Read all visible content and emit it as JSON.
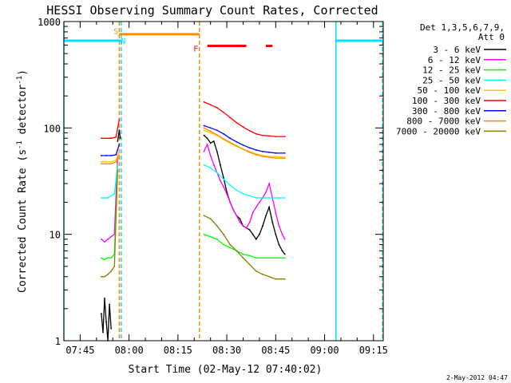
{
  "chart_data": {
    "type": "line",
    "title": "HESSI Observing Summary Count Rates, Corrected",
    "xlabel": "Start Time (02-May-12 07:40:02)",
    "ylabel_main": "Corrected Count Rate (s",
    "ylabel_sup1": "-1",
    "ylabel_mid": " detector",
    "ylabel_sup2": "-1",
    "ylabel_end": ")",
    "yscale": "log",
    "xlim_min": [
      40.0,
      138.0
    ],
    "ylim": [
      1,
      1000
    ],
    "x_ticks": [
      {
        "v": 45,
        "label": "07:45"
      },
      {
        "v": 60,
        "label": "08:00"
      },
      {
        "v": 75,
        "label": "08:15"
      },
      {
        "v": 90,
        "label": "08:30"
      },
      {
        "v": 105,
        "label": "08:45"
      },
      {
        "v": 120,
        "label": "09:00"
      },
      {
        "v": 135,
        "label": "09:15"
      }
    ],
    "y_ticks": [
      {
        "v": 1,
        "label": "1"
      },
      {
        "v": 10,
        "label": "10"
      },
      {
        "v": 100,
        "label": "100"
      },
      {
        "v": 1000,
        "label": "1000"
      }
    ],
    "legend_header_1": "Det 1,3,5,6,7,9,",
    "legend_header_2": "Att 0",
    "legend_position": "right",
    "series": [
      {
        "name": "3 - 6 keV",
        "color": "#000000",
        "segments": [
          [
            [
              51.5,
              1.8
            ],
            [
              52.0,
              1.2
            ],
            [
              52.5,
              2.5
            ],
            [
              53.0,
              1.5
            ],
            [
              53.5,
              1.0
            ],
            [
              54.0,
              2.2
            ],
            [
              54.5,
              1.3
            ]
          ],
          [
            [
              56.5,
              75
            ],
            [
              57.0,
              95
            ],
            [
              57.3,
              80
            ]
          ],
          [
            [
              83.0,
              85
            ],
            [
              84.0,
              80
            ],
            [
              85.0,
              72
            ],
            [
              86.0,
              75
            ],
            [
              87.0,
              60
            ],
            [
              88.0,
              45
            ],
            [
              89.0,
              34
            ],
            [
              90.0,
              25
            ],
            [
              91.0,
              20
            ],
            [
              92.0,
              17
            ],
            [
              93.0,
              15
            ],
            [
              94.0,
              14
            ],
            [
              95.0,
              12
            ],
            [
              96.0,
              11.5
            ],
            [
              97.0,
              11
            ],
            [
              98.0,
              10
            ],
            [
              99.0,
              9
            ],
            [
              100.0,
              10
            ],
            [
              101.0,
              12
            ],
            [
              102.0,
              15
            ],
            [
              103.0,
              18
            ],
            [
              104.0,
              13
            ],
            [
              105.0,
              10
            ],
            [
              106.0,
              8
            ],
            [
              107.0,
              7
            ],
            [
              107.8,
              6.5
            ]
          ]
        ]
      },
      {
        "name": "6 - 12 keV",
        "color": "#ff00ff",
        "segments": [
          [
            [
              51.5,
              9
            ],
            [
              52.5,
              8.5
            ],
            [
              53.5,
              9
            ],
            [
              54.5,
              9.5
            ],
            [
              55.5,
              10
            ],
            [
              56.5,
              55
            ],
            [
              57.0,
              60
            ]
          ],
          [
            [
              83.0,
              60
            ],
            [
              84.0,
              70
            ],
            [
              85.0,
              55
            ],
            [
              86.0,
              45
            ],
            [
              87.0,
              38
            ],
            [
              88.0,
              32
            ],
            [
              89.0,
              28
            ],
            [
              90.0,
              24
            ],
            [
              91.0,
              20
            ],
            [
              92.0,
              17
            ],
            [
              93.0,
              15
            ],
            [
              94.0,
              13
            ],
            [
              95.0,
              12
            ],
            [
              96.0,
              11.5
            ],
            [
              97.0,
              13
            ],
            [
              98.0,
              16
            ],
            [
              99.0,
              18
            ],
            [
              100.0,
              20
            ],
            [
              101.0,
              22
            ],
            [
              102.0,
              25
            ],
            [
              103.0,
              30
            ],
            [
              104.0,
              22
            ],
            [
              105.0,
              16
            ],
            [
              106.0,
              12
            ],
            [
              107.0,
              10
            ],
            [
              107.8,
              9
            ]
          ]
        ]
      },
      {
        "name": "12 - 25 keV",
        "color": "#00ff00",
        "segments": [
          [
            [
              51.5,
              6
            ],
            [
              52.5,
              5.8
            ],
            [
              53.5,
              6
            ],
            [
              54.5,
              6
            ],
            [
              55.5,
              6.5
            ],
            [
              56.5,
              45
            ]
          ],
          [
            [
              83.0,
              10
            ],
            [
              85.0,
              9.5
            ],
            [
              87.0,
              9
            ],
            [
              89.0,
              8
            ],
            [
              91.0,
              7.5
            ],
            [
              93.0,
              7
            ],
            [
              95.0,
              6.5
            ],
            [
              97.0,
              6.3
            ],
            [
              99.0,
              6
            ],
            [
              101.0,
              6
            ],
            [
              103.0,
              6
            ],
            [
              105.0,
              6
            ],
            [
              107.8,
              6
            ]
          ]
        ]
      },
      {
        "name": "25 - 50 keV",
        "color": "#00ffff",
        "segments": [
          [
            [
              51.5,
              22
            ],
            [
              52.5,
              22
            ],
            [
              53.5,
              22
            ],
            [
              54.5,
              23
            ],
            [
              55.5,
              24
            ],
            [
              56.5,
              45
            ]
          ],
          [
            [
              83.0,
              45
            ],
            [
              85.0,
              42
            ],
            [
              87.0,
              38
            ],
            [
              89.0,
              33
            ],
            [
              91.0,
              29
            ],
            [
              93.0,
              26
            ],
            [
              95.0,
              24
            ],
            [
              97.0,
              23
            ],
            [
              99.0,
              22
            ],
            [
              101.0,
              22
            ],
            [
              103.0,
              22
            ],
            [
              105.0,
              22
            ],
            [
              107.8,
              22
            ]
          ]
        ]
      },
      {
        "name": "50 - 100 keV",
        "color": "#ffcc00",
        "segments": [
          [
            [
              51.5,
              48
            ],
            [
              53.0,
              48
            ],
            [
              54.5,
              48
            ],
            [
              56.0,
              50
            ],
            [
              57.0,
              60
            ]
          ],
          [
            [
              83.0,
              95
            ],
            [
              85.0,
              90
            ],
            [
              87.0,
              85
            ],
            [
              89.0,
              78
            ],
            [
              91.0,
              72
            ],
            [
              93.0,
              67
            ],
            [
              95.0,
              63
            ],
            [
              97.0,
              60
            ],
            [
              99.0,
              57
            ],
            [
              101.0,
              55
            ],
            [
              103.0,
              54
            ],
            [
              105.0,
              54
            ],
            [
              107.8,
              53
            ]
          ]
        ]
      },
      {
        "name": "100 - 300 keV",
        "color": "#ff0000",
        "segments": [
          [
            [
              51.5,
              80
            ],
            [
              53.0,
              80
            ],
            [
              54.5,
              80
            ],
            [
              56.0,
              82
            ],
            [
              57.0,
              120
            ]
          ],
          [
            [
              83.0,
              175
            ],
            [
              85.0,
              165
            ],
            [
              87.0,
              155
            ],
            [
              89.0,
              140
            ],
            [
              91.0,
              125
            ],
            [
              93.0,
              112
            ],
            [
              95.0,
              102
            ],
            [
              97.0,
              94
            ],
            [
              99.0,
              88
            ],
            [
              101.0,
              85
            ],
            [
              103.0,
              84
            ],
            [
              105.0,
              83
            ],
            [
              107.8,
              83
            ]
          ]
        ]
      },
      {
        "name": "300 - 800 keV",
        "color": "#0000ff",
        "segments": [
          [
            [
              51.5,
              55
            ],
            [
              53.0,
              55
            ],
            [
              54.5,
              55
            ],
            [
              56.0,
              56
            ],
            [
              57.0,
              70
            ]
          ],
          [
            [
              83.0,
              105
            ],
            [
              85.0,
              100
            ],
            [
              87.0,
              95
            ],
            [
              89.0,
              88
            ],
            [
              91.0,
              80
            ],
            [
              93.0,
              74
            ],
            [
              95.0,
              69
            ],
            [
              97.0,
              65
            ],
            [
              99.0,
              62
            ],
            [
              101.0,
              60
            ],
            [
              103.0,
              59
            ],
            [
              105.0,
              58
            ],
            [
              107.8,
              58
            ]
          ]
        ]
      },
      {
        "name": "800 - 7000 keV",
        "color": "#ff8c00",
        "segments": [
          [
            [
              51.5,
              46
            ],
            [
              53.0,
              46
            ],
            [
              54.5,
              46
            ],
            [
              56.0,
              48
            ],
            [
              57.0,
              55
            ]
          ],
          [
            [
              83.0,
              100
            ],
            [
              85.0,
              93
            ],
            [
              87.0,
              86
            ],
            [
              89.0,
              79
            ],
            [
              91.0,
              73
            ],
            [
              93.0,
              68
            ],
            [
              95.0,
              63
            ],
            [
              97.0,
              59
            ],
            [
              99.0,
              56
            ],
            [
              101.0,
              54
            ],
            [
              103.0,
              53
            ],
            [
              105.0,
              52
            ],
            [
              107.8,
              52
            ]
          ]
        ]
      },
      {
        "name": "7000 - 20000 keV",
        "color": "#8b7d00",
        "segments": [
          [
            [
              51.5,
              4
            ],
            [
              52.5,
              4
            ],
            [
              53.5,
              4.2
            ],
            [
              54.5,
              4.5
            ],
            [
              55.5,
              5
            ],
            [
              56.5,
              40
            ]
          ],
          [
            [
              83.0,
              15
            ],
            [
              85.0,
              14
            ],
            [
              87.0,
              12
            ],
            [
              89.0,
              10
            ],
            [
              91.0,
              8
            ],
            [
              93.0,
              7
            ],
            [
              95.0,
              6
            ],
            [
              97.0,
              5.2
            ],
            [
              99.0,
              4.5
            ],
            [
              101.0,
              4.2
            ],
            [
              103.0,
              4
            ],
            [
              105.0,
              3.8
            ],
            [
              107.8,
              3.8
            ]
          ]
        ]
      }
    ],
    "flag_lines": [
      {
        "x": 40.0,
        "color": "#00e0ff",
        "style": "solid"
      },
      {
        "x": 57.6,
        "color": "#00e0ff",
        "style": "dashed"
      },
      {
        "x": 57.0,
        "color": "#ff8c00",
        "style": "dashed"
      },
      {
        "x": 81.6,
        "color": "#ff8c00",
        "style": "dashed"
      },
      {
        "x": 123.5,
        "color": "#00e0ff",
        "style": "solid"
      },
      {
        "x": 137.8,
        "color": "#00e0ff",
        "style": "dashed"
      }
    ],
    "flag_bars": [
      {
        "x1": 40.0,
        "x2": 57.6,
        "y": 660,
        "color": "#00e0ff"
      },
      {
        "x1": 123.5,
        "x2": 137.8,
        "y": 660,
        "color": "#00e0ff"
      },
      {
        "x1": 57.0,
        "x2": 81.6,
        "y": 760,
        "color": "#ff8c00"
      },
      {
        "x1": 84.0,
        "x2": 96.0,
        "y": 590,
        "color": "#ff0000"
      },
      {
        "x1": 102.0,
        "x2": 104.0,
        "y": 590,
        "color": "#ff0000"
      }
    ],
    "flag_labels": [
      {
        "text": "S",
        "x": 56.0,
        "y": 820,
        "color": "#ff8c00"
      },
      {
        "text": "N",
        "x": 58.2,
        "y": 660,
        "color": "#00e0ff"
      },
      {
        "text": "F",
        "x": 80.5,
        "y": 560,
        "color": "#ff0000"
      }
    ]
  },
  "footer_date": "2-May-2012 04:47"
}
